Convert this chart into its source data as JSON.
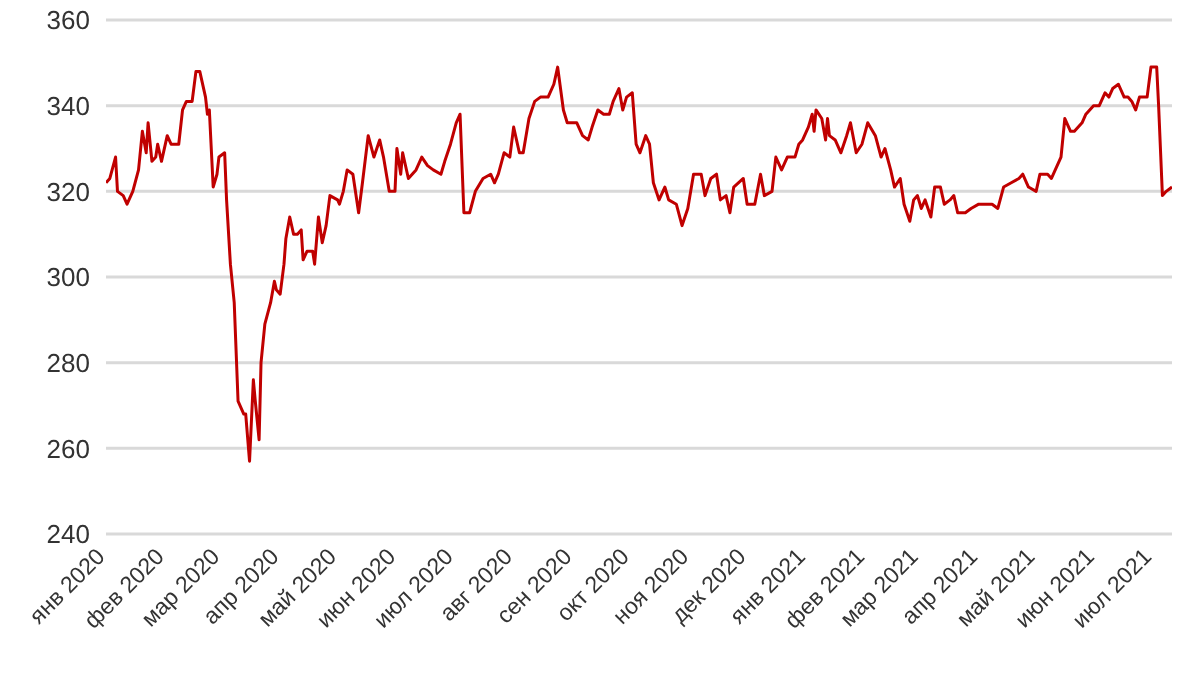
{
  "chart_data": {
    "type": "line",
    "grid": "y",
    "marker": "none",
    "line_style": "solid",
    "xlim": [
      "2020-01-01",
      "2021-07-11"
    ],
    "ylim": [
      240,
      360
    ],
    "yticks": [
      240,
      260,
      280,
      300,
      320,
      340,
      360
    ],
    "xticks": [
      {
        "value": "2020-01-01",
        "label": "янв 2020"
      },
      {
        "value": "2020-02-01",
        "label": "фев 2020"
      },
      {
        "value": "2020-03-01",
        "label": "мар 2020"
      },
      {
        "value": "2020-04-01",
        "label": "апр 2020"
      },
      {
        "value": "2020-05-01",
        "label": "май 2020"
      },
      {
        "value": "2020-06-01",
        "label": "июн 2020"
      },
      {
        "value": "2020-07-01",
        "label": "июл 2020"
      },
      {
        "value": "2020-08-01",
        "label": "авг 2020"
      },
      {
        "value": "2020-09-01",
        "label": "сен 2020"
      },
      {
        "value": "2020-10-01",
        "label": "окт 2020"
      },
      {
        "value": "2020-11-01",
        "label": "ноя 2020"
      },
      {
        "value": "2020-12-01",
        "label": "дек 2020"
      },
      {
        "value": "2021-01-01",
        "label": "янв 2021"
      },
      {
        "value": "2021-02-01",
        "label": "фев 2021"
      },
      {
        "value": "2021-03-01",
        "label": "мар 2021"
      },
      {
        "value": "2021-04-01",
        "label": "апр 2021"
      },
      {
        "value": "2021-05-01",
        "label": "май 2021"
      },
      {
        "value": "2021-06-01",
        "label": "июн 2021"
      },
      {
        "value": "2021-07-01",
        "label": "июл 2021"
      }
    ],
    "x": [
      "2020-01-01",
      "2020-01-03",
      "2020-01-06",
      "2020-01-07",
      "2020-01-10",
      "2020-01-12",
      "2020-01-15",
      "2020-01-18",
      "2020-01-20",
      "2020-01-22",
      "2020-01-23",
      "2020-01-25",
      "2020-01-27",
      "2020-01-28",
      "2020-01-30",
      "2020-02-02",
      "2020-02-04",
      "2020-02-08",
      "2020-02-10",
      "2020-02-12",
      "2020-02-15",
      "2020-02-17",
      "2020-02-19",
      "2020-02-22",
      "2020-02-23",
      "2020-02-24",
      "2020-02-26",
      "2020-02-28",
      "2020-02-29",
      "2020-03-03",
      "2020-03-04",
      "2020-03-06",
      "2020-03-08",
      "2020-03-10",
      "2020-03-13",
      "2020-03-14",
      "2020-03-16",
      "2020-03-18",
      "2020-03-19",
      "2020-03-21",
      "2020-03-22",
      "2020-03-24",
      "2020-03-27",
      "2020-03-29",
      "2020-03-30",
      "2020-04-01",
      "2020-04-03",
      "2020-04-04",
      "2020-04-06",
      "2020-04-08",
      "2020-04-10",
      "2020-04-12",
      "2020-04-13",
      "2020-04-15",
      "2020-04-18",
      "2020-04-19",
      "2020-04-21",
      "2020-04-23",
      "2020-04-25",
      "2020-04-27",
      "2020-05-01",
      "2020-05-02",
      "2020-05-04",
      "2020-05-06",
      "2020-05-09",
      "2020-05-12",
      "2020-05-14",
      "2020-05-17",
      "2020-05-20",
      "2020-05-23",
      "2020-05-25",
      "2020-05-28",
      "2020-05-31",
      "2020-06-01",
      "2020-06-03",
      "2020-06-04",
      "2020-06-07",
      "2020-06-11",
      "2020-06-14",
      "2020-06-17",
      "2020-06-20",
      "2020-06-24",
      "2020-06-26",
      "2020-06-29",
      "2020-07-02",
      "2020-07-04",
      "2020-07-06",
      "2020-07-09",
      "2020-07-12",
      "2020-07-16",
      "2020-07-20",
      "2020-07-22",
      "2020-07-24",
      "2020-07-27",
      "2020-07-30",
      "2020-08-01",
      "2020-08-04",
      "2020-08-06",
      "2020-08-09",
      "2020-08-12",
      "2020-08-15",
      "2020-08-19",
      "2020-08-22",
      "2020-08-24",
      "2020-08-27",
      "2020-08-29",
      "2020-08-31",
      "2020-09-03",
      "2020-09-06",
      "2020-09-09",
      "2020-09-11",
      "2020-09-14",
      "2020-09-17",
      "2020-09-20",
      "2020-09-22",
      "2020-09-25",
      "2020-09-27",
      "2020-09-29",
      "2020-10-02",
      "2020-10-04",
      "2020-10-06",
      "2020-10-09",
      "2020-10-11",
      "2020-10-13",
      "2020-10-16",
      "2020-10-19",
      "2020-10-21",
      "2020-10-25",
      "2020-10-28",
      "2020-10-31",
      "2020-11-03",
      "2020-11-07",
      "2020-11-09",
      "2020-11-12",
      "2020-11-15",
      "2020-11-17",
      "2020-11-20",
      "2020-11-22",
      "2020-11-24",
      "2020-11-29",
      "2020-12-01",
      "2020-12-05",
      "2020-12-08",
      "2020-12-10",
      "2020-12-14",
      "2020-12-16",
      "2020-12-19",
      "2020-12-22",
      "2020-12-26",
      "2020-12-28",
      "2020-12-30",
      "2021-01-02",
      "2021-01-04",
      "2021-01-05",
      "2021-01-06",
      "2021-01-09",
      "2021-01-11",
      "2021-01-12",
      "2021-01-13",
      "2021-01-16",
      "2021-01-19",
      "2021-01-22",
      "2021-01-24",
      "2021-01-27",
      "2021-01-30",
      "2021-02-02",
      "2021-02-06",
      "2021-02-09",
      "2021-02-11",
      "2021-02-14",
      "2021-02-16",
      "2021-02-19",
      "2021-02-21",
      "2021-02-24",
      "2021-02-26",
      "2021-02-28",
      "2021-03-02",
      "2021-03-04",
      "2021-03-07",
      "2021-03-09",
      "2021-03-12",
      "2021-03-14",
      "2021-03-17",
      "2021-03-19",
      "2021-03-21",
      "2021-03-25",
      "2021-03-28",
      "2021-04-01",
      "2021-04-04",
      "2021-04-08",
      "2021-04-11",
      "2021-04-14",
      "2021-04-18",
      "2021-04-22",
      "2021-04-24",
      "2021-04-27",
      "2021-05-01",
      "2021-05-03",
      "2021-05-07",
      "2021-05-09",
      "2021-05-12",
      "2021-05-14",
      "2021-05-16",
      "2021-05-19",
      "2021-05-21",
      "2021-05-25",
      "2021-05-27",
      "2021-05-31",
      "2021-06-03",
      "2021-06-06",
      "2021-06-08",
      "2021-06-10",
      "2021-06-13",
      "2021-06-16",
      "2021-06-18",
      "2021-06-20",
      "2021-06-22",
      "2021-06-24",
      "2021-06-27",
      "2021-06-28",
      "2021-06-30",
      "2021-07-03",
      "2021-07-04",
      "2021-07-06",
      "2021-07-08",
      "2021-07-11"
    ],
    "series": [
      {
        "color": "#c00000",
        "values": [
          322,
          323,
          328,
          320,
          319,
          317,
          320,
          325,
          334,
          329,
          336,
          327,
          328,
          331,
          327,
          333,
          331,
          331,
          339,
          341,
          341,
          348,
          348,
          342,
          338,
          339,
          321,
          324,
          328,
          329,
          318,
          303,
          294,
          271,
          268,
          268,
          257,
          276,
          271,
          262,
          280,
          289,
          294,
          299,
          297,
          296,
          303,
          309,
          314,
          310,
          310,
          311,
          304,
          306,
          306,
          303,
          314,
          308,
          312,
          319,
          318,
          317,
          320,
          325,
          324,
          315,
          322,
          333,
          328,
          332,
          328,
          320,
          320,
          330,
          324,
          329,
          323,
          325,
          328,
          326,
          325,
          324,
          327,
          331,
          336,
          338,
          315,
          315,
          320,
          323,
          324,
          322,
          324,
          329,
          328,
          335,
          329,
          329,
          337,
          341,
          342,
          342,
          345,
          349,
          339,
          336,
          336,
          336,
          333,
          332,
          335,
          339,
          338,
          338,
          341,
          344,
          339,
          342,
          343,
          331,
          329,
          333,
          331,
          322,
          318,
          321,
          318,
          317,
          312,
          316,
          324,
          324,
          319,
          323,
          324,
          318,
          319,
          315,
          321,
          323,
          317,
          317,
          324,
          319,
          320,
          328,
          325,
          328,
          328,
          331,
          332,
          335,
          338,
          334,
          339,
          337,
          332,
          337,
          333,
          332,
          329,
          333,
          336,
          329,
          331,
          336,
          333,
          328,
          330,
          325,
          321,
          323,
          317,
          313,
          318,
          319,
          316,
          318,
          314,
          321,
          321,
          317,
          318,
          319,
          315,
          315,
          316,
          317,
          317,
          317,
          316,
          321,
          322,
          323,
          324,
          321,
          320,
          324,
          324,
          323,
          326,
          328,
          337,
          334,
          334,
          336,
          338,
          340,
          340,
          343,
          342,
          344,
          345,
          342,
          342,
          341,
          339,
          342,
          342,
          342,
          349,
          349,
          340,
          319,
          320,
          321
        ]
      }
    ]
  }
}
